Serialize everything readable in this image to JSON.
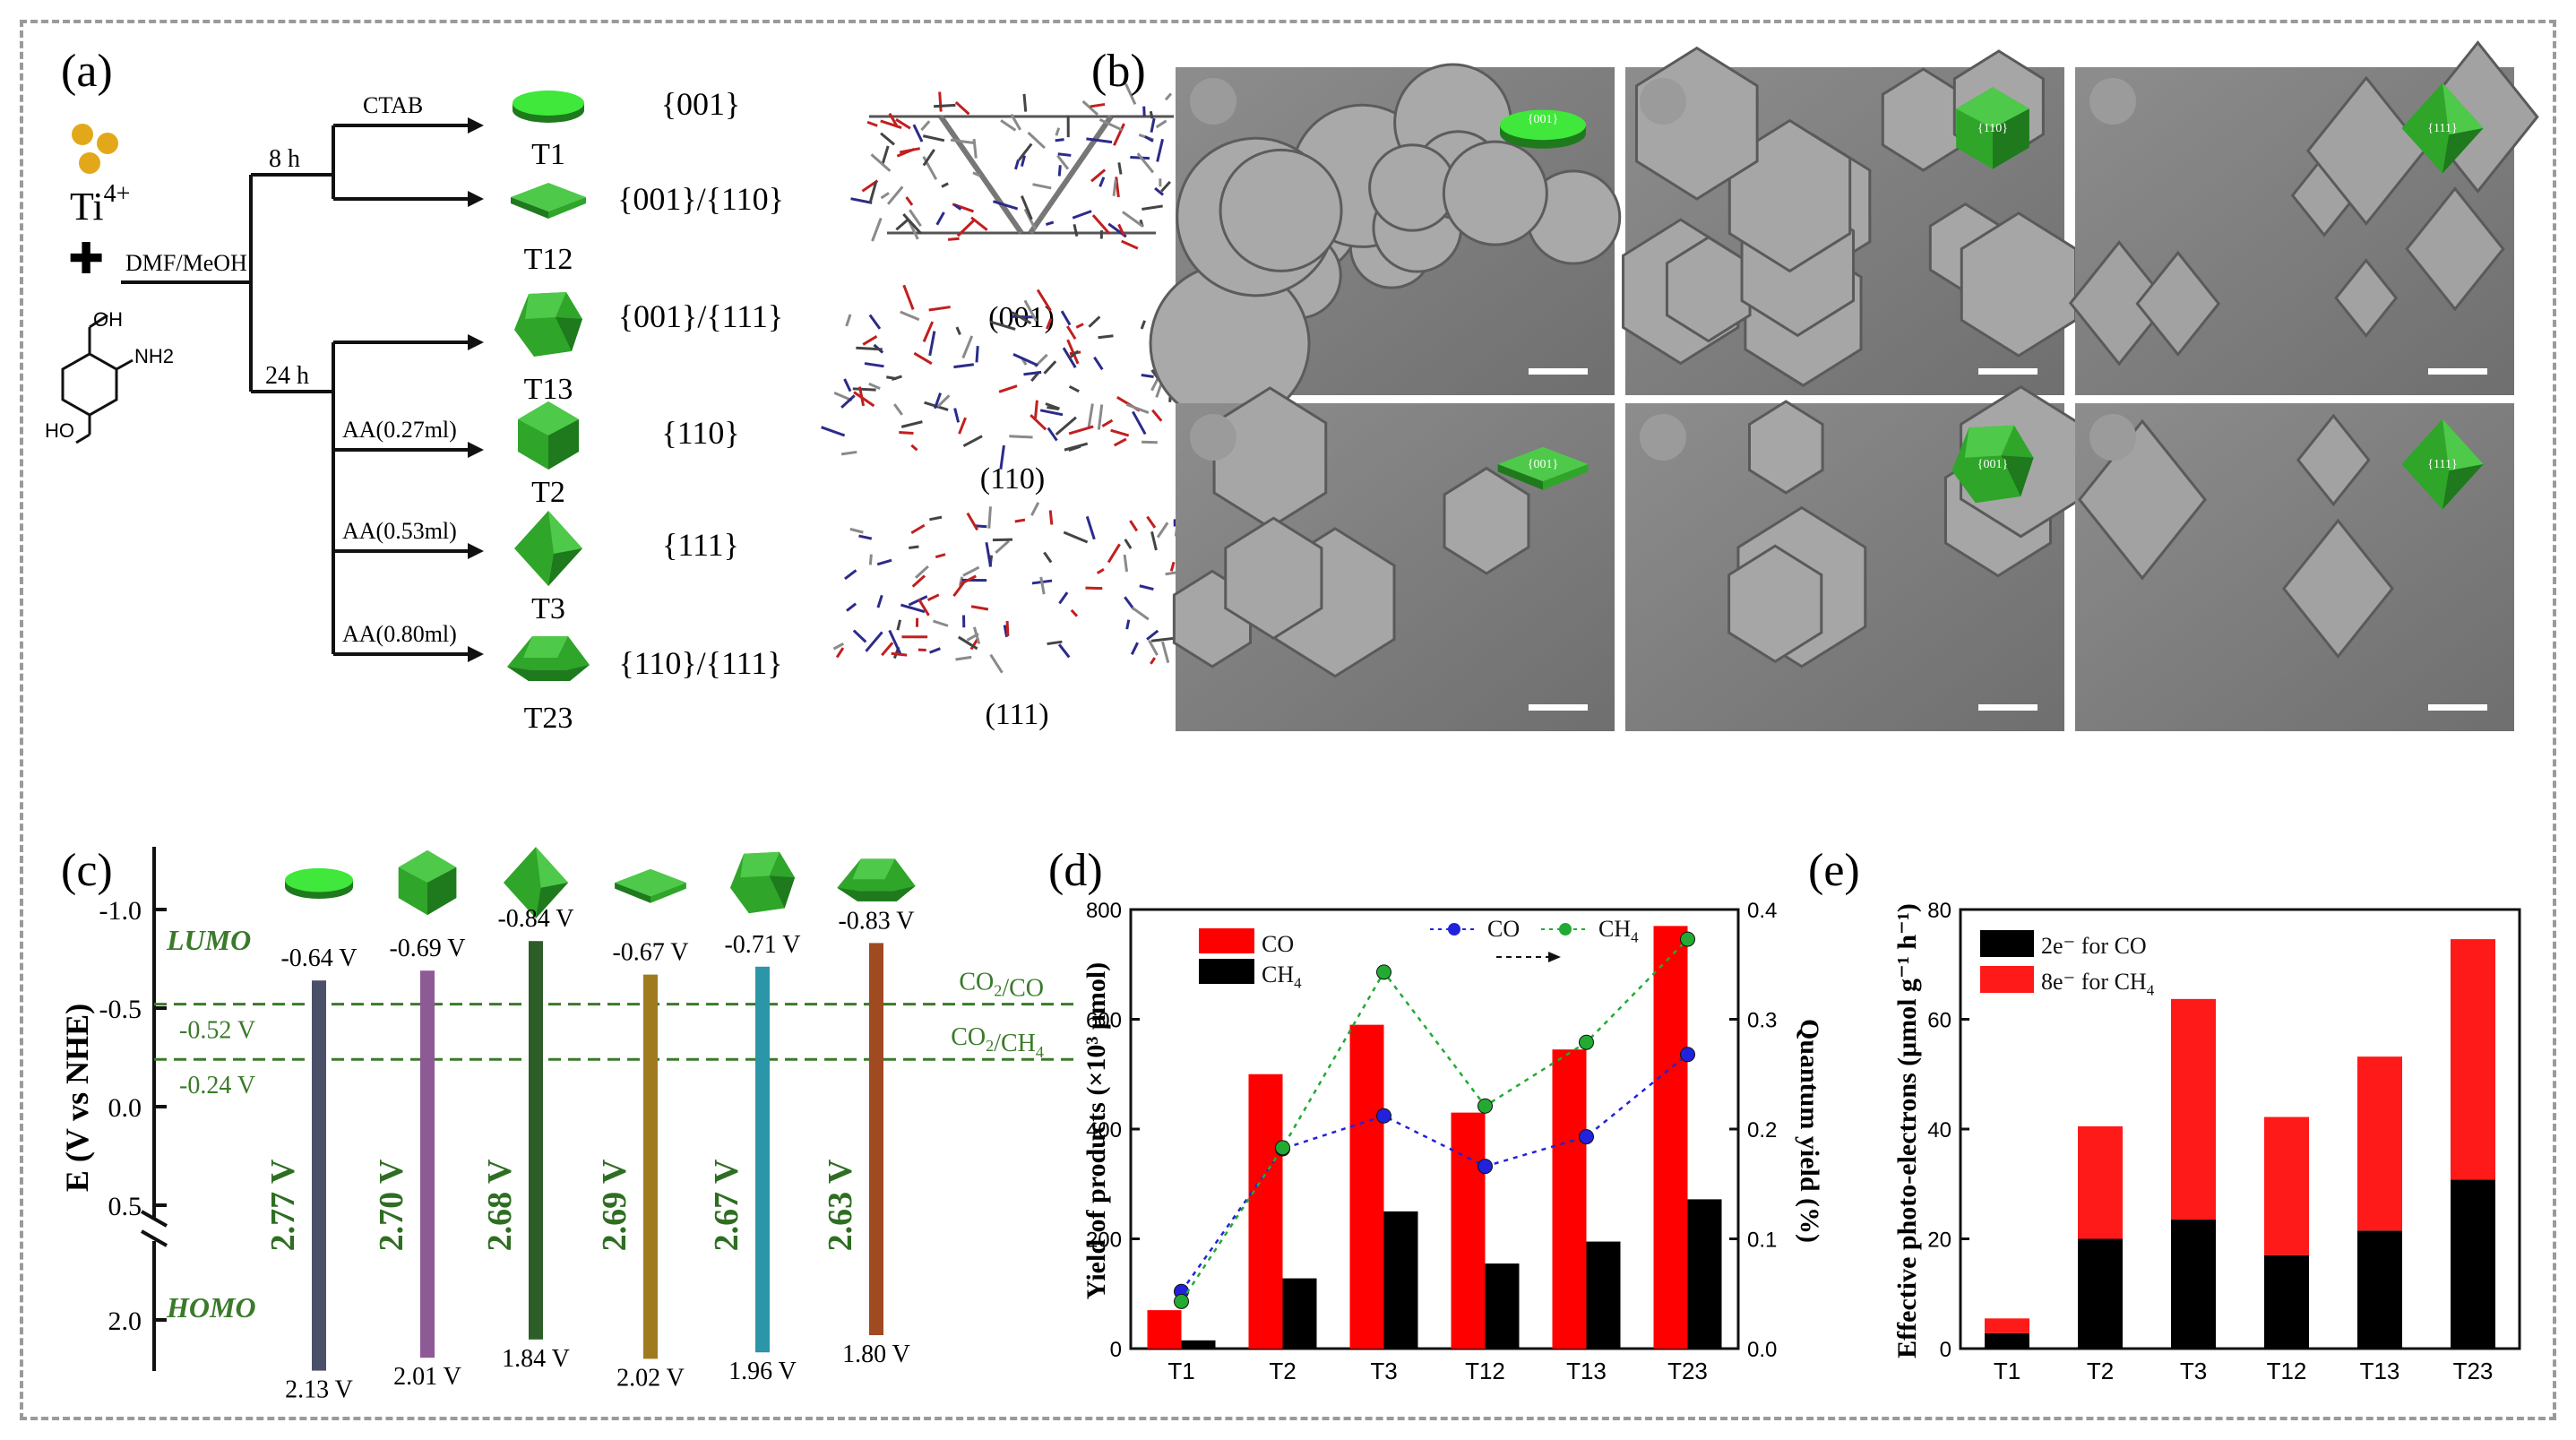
{
  "panels": {
    "a": {
      "label": "(a)",
      "reagents": {
        "metal": "Ti",
        "metal_charge": "4+",
        "plus": "✚",
        "solvent": "DMF/MeOH",
        "ligand_oh": "OH",
        "ligand_nh2": "NH2",
        "ligand_ho": "HO"
      },
      "times": [
        "8 h",
        "24 h"
      ],
      "branches": [
        {
          "condition": "CTAB",
          "sample": "T1",
          "facet": "{001}"
        },
        {
          "condition": "",
          "sample": "T12",
          "facet": "{001}/{110}"
        },
        {
          "condition": "",
          "sample": "T13",
          "facet": "{001}/{111}"
        },
        {
          "condition": "AA(0.27ml)",
          "sample": "T2",
          "facet": "{110}"
        },
        {
          "condition": "AA(0.53ml)",
          "sample": "T3",
          "facet": "{111}"
        },
        {
          "condition": "AA(0.80ml)",
          "sample": "T23",
          "facet": "{110}/{111}"
        }
      ],
      "structures": [
        "(001)",
        "(110)",
        "(111)"
      ]
    },
    "b": {
      "label": "(b)",
      "insets": [
        "{001}",
        "{110}",
        "{111}",
        "{001}",
        "{001}",
        "{111}"
      ]
    },
    "c": {
      "label": "(c)"
    },
    "d": {
      "label": "(d)"
    },
    "e": {
      "label": "(e)"
    }
  },
  "chart_data": [
    {
      "id": "c",
      "type": "bar",
      "ylabel": "E (V vs NHE)",
      "y_ticks": [
        "-1.0",
        "-0.5",
        "0.0",
        "0.5",
        "2.0"
      ],
      "levels": [
        {
          "label": "LUMO"
        },
        {
          "label": "HOMO"
        }
      ],
      "reference_lines": [
        {
          "name": "CO2/CO",
          "value": -0.52,
          "label": "-0.52 V"
        },
        {
          "name": "CO2/CH4",
          "value": -0.24,
          "label": "-0.24 V"
        }
      ],
      "categories": [
        "T1",
        "T2",
        "T3",
        "T12",
        "T13",
        "T23"
      ],
      "lumo": [
        -0.64,
        -0.69,
        -0.84,
        -0.67,
        -0.71,
        -0.83
      ],
      "homo": [
        2.13,
        2.01,
        1.84,
        2.02,
        1.96,
        1.8
      ],
      "lumo_labels": [
        "-0.64 V",
        "-0.69 V",
        "-0.84 V",
        "-0.67 V",
        "-0.71 V",
        "-0.83 V"
      ],
      "homo_labels": [
        "2.13 V",
        "2.01 V",
        "1.84 V",
        "2.02 V",
        "1.96 V",
        "1.80 V"
      ],
      "gap_labels": [
        "2.77 V",
        "2.70 V",
        "2.68 V",
        "2.69 V",
        "2.67 V",
        "2.63 V"
      ],
      "colors": [
        "#4a5068",
        "#8e5a95",
        "#2e5e28",
        "#a07a1e",
        "#2a96a8",
        "#a04a22"
      ]
    },
    {
      "id": "d",
      "type": "bar",
      "categories": [
        "T1",
        "T2",
        "T3",
        "T12",
        "T13",
        "T23"
      ],
      "ylabel": "Yield of products (×10³ μmol)",
      "y2label": "Quantum yield (%)",
      "ylim": [
        0,
        800
      ],
      "y2lim": [
        0,
        0.4
      ],
      "y_ticks": [
        0,
        200,
        400,
        600,
        800
      ],
      "y2_ticks": [
        "0.0",
        "0.1",
        "0.2",
        "0.3",
        "0.4"
      ],
      "legend": "top-left",
      "series": [
        {
          "name": "CO",
          "kind": "bar",
          "color": "#ff0000",
          "values": [
            70,
            500,
            590,
            430,
            545,
            770
          ]
        },
        {
          "name": "CH4",
          "kind": "bar",
          "color": "#000000",
          "values": [
            15,
            128,
            250,
            155,
            195,
            272
          ]
        }
      ],
      "line_series": [
        {
          "name": "CO",
          "color": "#2222dd",
          "values": [
            0.052,
            0.182,
            0.212,
            0.166,
            0.193,
            0.268
          ]
        },
        {
          "name": "CH4",
          "color": "#22aa33",
          "values": [
            0.043,
            0.183,
            0.343,
            0.221,
            0.279,
            0.373
          ]
        }
      ]
    },
    {
      "id": "e",
      "type": "bar",
      "stacked": true,
      "categories": [
        "T1",
        "T2",
        "T3",
        "T12",
        "T13",
        "T23"
      ],
      "ylabel": "Effective photo-electrons (μmol g⁻¹ h⁻¹)",
      "ylim": [
        0,
        80
      ],
      "y_ticks": [
        0,
        20,
        40,
        60,
        80
      ],
      "legend": "top-left",
      "series": [
        {
          "name": "2e⁻ for CO",
          "color": "#000000",
          "values": [
            2.8,
            20,
            23.5,
            17,
            21.5,
            30.8
          ]
        },
        {
          "name": "8e⁻ for CH4",
          "color": "#ff1a1a",
          "values": [
            2.7,
            20.5,
            40.2,
            25.2,
            31.7,
            43.8
          ]
        }
      ]
    }
  ]
}
